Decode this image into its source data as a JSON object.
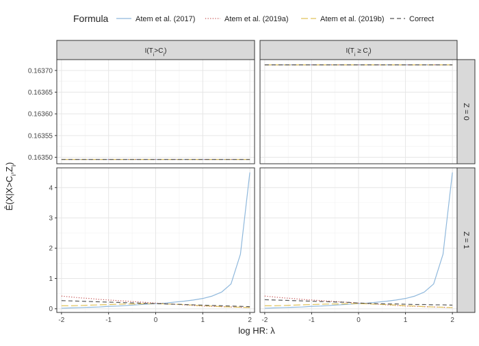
{
  "legend": {
    "title": "Formula",
    "position": "top",
    "items": [
      {
        "label": "Atem et al. (2017)",
        "color": "#8fb8dc",
        "dash": "solid"
      },
      {
        "label": "Atem et al. (2019a)",
        "color": "#c24a4a",
        "dash": "dotted"
      },
      {
        "label": "Atem et al. (2019b)",
        "color": "#e0c25a",
        "dash": "longdash"
      },
      {
        "label": "Correct",
        "color": "#555555",
        "dash": "dashed"
      }
    ]
  },
  "axes": {
    "xlabel": "log HR: λ",
    "ylabel": "Ê(X|X>C_i,Z_i)",
    "x_ticks": [
      -2,
      -1,
      0,
      1,
      2
    ],
    "x_range": [
      -2.1,
      2.1
    ]
  },
  "facets": {
    "columns": [
      "I(T_i>C_i)",
      "I(T_i ≥ C_i)"
    ],
    "rows": [
      "Z = 0",
      "Z = 1"
    ]
  },
  "chart_data": {
    "type": "line",
    "facet_grid": true,
    "x": [
      -2,
      -1.8,
      -1.6,
      -1.4,
      -1.2,
      -1,
      -0.8,
      -0.6,
      -0.4,
      -0.2,
      0,
      0.2,
      0.4,
      0.6,
      0.8,
      1,
      1.2,
      1.4,
      1.6,
      1.8,
      2
    ],
    "rows": [
      {
        "row": "Z = 0",
        "ylim": [
          0.163485,
          0.163725
        ],
        "y_ticks": [
          0.1635,
          0.16355,
          0.1636,
          0.16365,
          0.1637
        ],
        "y_tick_labels": [
          "0.16350",
          "0.16355",
          "0.16360",
          "0.16365",
          "0.16370"
        ],
        "panels": [
          {
            "column": "I(T_i>C_i)",
            "series": [
              {
                "name": "Atem et al. (2017)",
                "constant": 0.163495
              },
              {
                "name": "Atem et al. (2019a)",
                "constant": 0.163495
              },
              {
                "name": "Atem et al. (2019b)",
                "constant": 0.163495
              },
              {
                "name": "Correct",
                "constant": 0.163495
              }
            ]
          },
          {
            "column": "I(T_i ≥ C_i)",
            "series": [
              {
                "name": "Atem et al. (2017)",
                "constant": 0.163713
              },
              {
                "name": "Atem et al. (2019a)",
                "constant": 0.163713
              },
              {
                "name": "Atem et al. (2019b)",
                "constant": 0.163713
              },
              {
                "name": "Correct",
                "constant": 0.163713
              }
            ]
          }
        ]
      },
      {
        "row": "Z = 1",
        "ylim": [
          -0.12,
          4.65
        ],
        "y_ticks": [
          0,
          1,
          2,
          3,
          4
        ],
        "y_tick_labels": [
          "0",
          "1",
          "2",
          "3",
          "4"
        ],
        "panels": [
          {
            "column": "I(T_i>C_i)",
            "series": [
              {
                "name": "Atem et al. (2017)",
                "values": [
                  0.02,
                  0.03,
                  0.04,
                  0.05,
                  0.06,
                  0.08,
                  0.09,
                  0.11,
                  0.13,
                  0.15,
                  0.17,
                  0.19,
                  0.22,
                  0.25,
                  0.29,
                  0.34,
                  0.42,
                  0.55,
                  0.82,
                  1.8,
                  4.5
                ]
              },
              {
                "name": "Atem et al. (2019a)",
                "values": [
                  0.42,
                  0.39,
                  0.36,
                  0.34,
                  0.31,
                  0.29,
                  0.27,
                  0.25,
                  0.23,
                  0.21,
                  0.19,
                  0.17,
                  0.15,
                  0.13,
                  0.11,
                  0.09,
                  0.08,
                  0.07,
                  0.06,
                  0.05,
                  0.04
                ]
              },
              {
                "name": "Atem et al. (2019b)",
                "values": [
                  0.1,
                  0.1,
                  0.11,
                  0.12,
                  0.13,
                  0.14,
                  0.15,
                  0.16,
                  0.16,
                  0.17,
                  0.17,
                  0.16,
                  0.15,
                  0.14,
                  0.12,
                  0.1,
                  0.09,
                  0.07,
                  0.06,
                  0.05,
                  0.04
                ]
              },
              {
                "name": "Correct",
                "values": [
                  0.27,
                  0.26,
                  0.25,
                  0.24,
                  0.23,
                  0.22,
                  0.21,
                  0.2,
                  0.19,
                  0.18,
                  0.17,
                  0.16,
                  0.15,
                  0.14,
                  0.13,
                  0.12,
                  0.11,
                  0.1,
                  0.09,
                  0.08,
                  0.07
                ]
              }
            ]
          },
          {
            "column": "I(T_i ≥ C_i)",
            "series": [
              {
                "name": "Atem et al. (2017)",
                "values": [
                  0.02,
                  0.03,
                  0.04,
                  0.05,
                  0.06,
                  0.08,
                  0.09,
                  0.11,
                  0.13,
                  0.15,
                  0.17,
                  0.19,
                  0.22,
                  0.25,
                  0.29,
                  0.34,
                  0.42,
                  0.55,
                  0.82,
                  1.8,
                  4.5
                ]
              },
              {
                "name": "Atem et al. (2019a)",
                "values": [
                  0.42,
                  0.39,
                  0.36,
                  0.34,
                  0.31,
                  0.29,
                  0.27,
                  0.25,
                  0.23,
                  0.21,
                  0.19,
                  0.17,
                  0.15,
                  0.13,
                  0.11,
                  0.09,
                  0.08,
                  0.07,
                  0.06,
                  0.05,
                  0.04
                ]
              },
              {
                "name": "Atem et al. (2019b)",
                "values": [
                  0.1,
                  0.1,
                  0.11,
                  0.12,
                  0.13,
                  0.14,
                  0.15,
                  0.16,
                  0.16,
                  0.17,
                  0.17,
                  0.16,
                  0.15,
                  0.14,
                  0.12,
                  0.1,
                  0.09,
                  0.07,
                  0.06,
                  0.05,
                  0.04
                ]
              },
              {
                "name": "Correct",
                "values": [
                  0.3,
                  0.29,
                  0.28,
                  0.27,
                  0.26,
                  0.25,
                  0.24,
                  0.23,
                  0.22,
                  0.21,
                  0.19,
                  0.18,
                  0.17,
                  0.16,
                  0.16,
                  0.15,
                  0.14,
                  0.14,
                  0.13,
                  0.13,
                  0.12
                ]
              }
            ]
          }
        ]
      }
    ]
  }
}
